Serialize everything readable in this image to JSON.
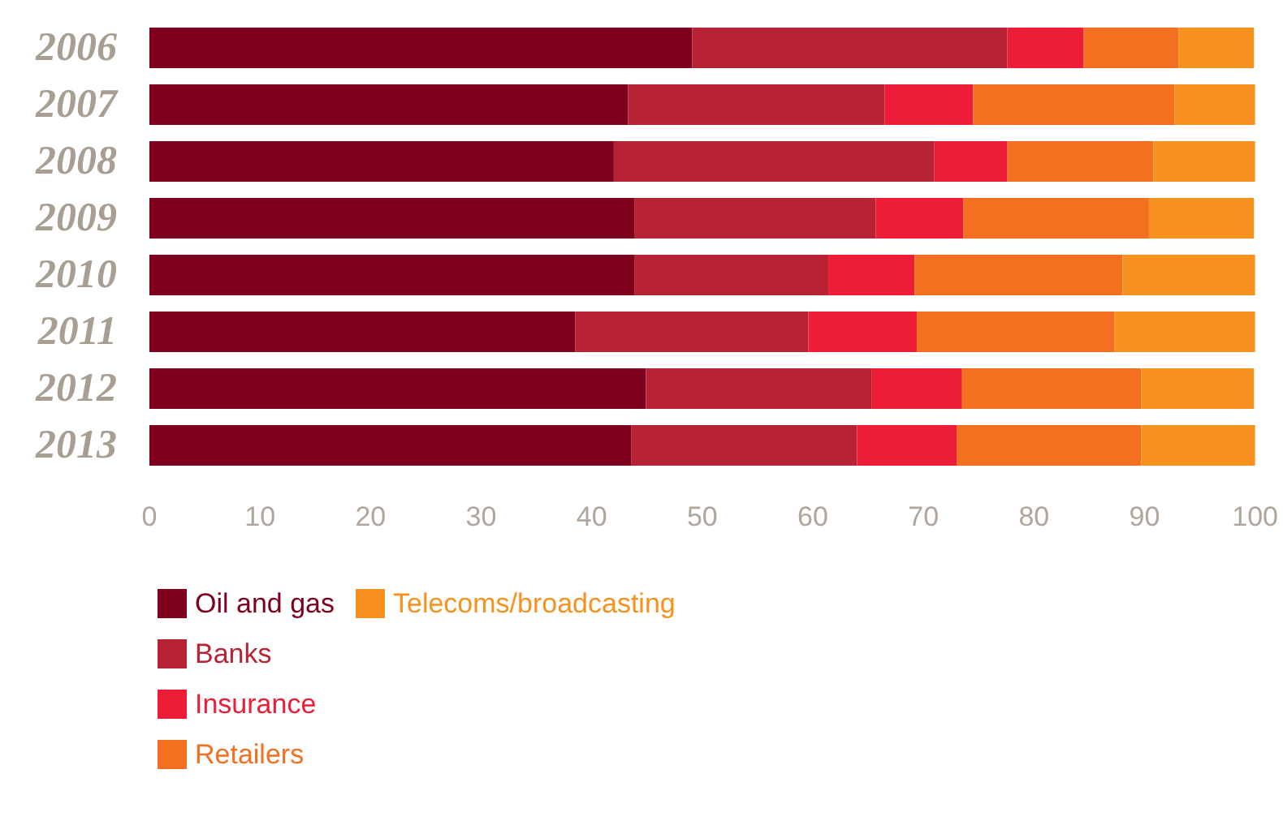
{
  "chart_data": {
    "type": "bar",
    "orientation": "horizontal",
    "stacked": true,
    "categories": [
      "2006",
      "2007",
      "2008",
      "2009",
      "2010",
      "2011",
      "2012",
      "2013"
    ],
    "series": [
      {
        "name": "Oil and gas",
        "color": "#7f001c",
        "values": [
          49.1,
          43.3,
          42.0,
          43.9,
          43.9,
          38.5,
          44.9,
          43.6
        ]
      },
      {
        "name": "Banks",
        "color": "#b72234",
        "values": [
          28.5,
          23.2,
          29.0,
          21.8,
          17.5,
          21.1,
          20.4,
          20.4
        ]
      },
      {
        "name": "Insurance",
        "color": "#ed1c37",
        "values": [
          6.9,
          8.0,
          6.6,
          7.9,
          7.8,
          9.8,
          8.2,
          9.0
        ]
      },
      {
        "name": "Retailers",
        "color": "#f37021",
        "values": [
          8.6,
          18.2,
          13.2,
          16.8,
          18.8,
          17.9,
          16.2,
          16.7
        ]
      },
      {
        "name": "Telecoms/broadcasting",
        "color": "#f7921e",
        "values": [
          6.8,
          7.3,
          9.2,
          9.5,
          12.0,
          12.7,
          10.2,
          10.3
        ]
      }
    ],
    "xlim": [
      0,
      100
    ],
    "xticks": [
      0,
      10,
      20,
      30,
      40,
      50,
      60,
      70,
      80,
      90,
      100
    ],
    "grid": false,
    "legend": "bottom left"
  }
}
